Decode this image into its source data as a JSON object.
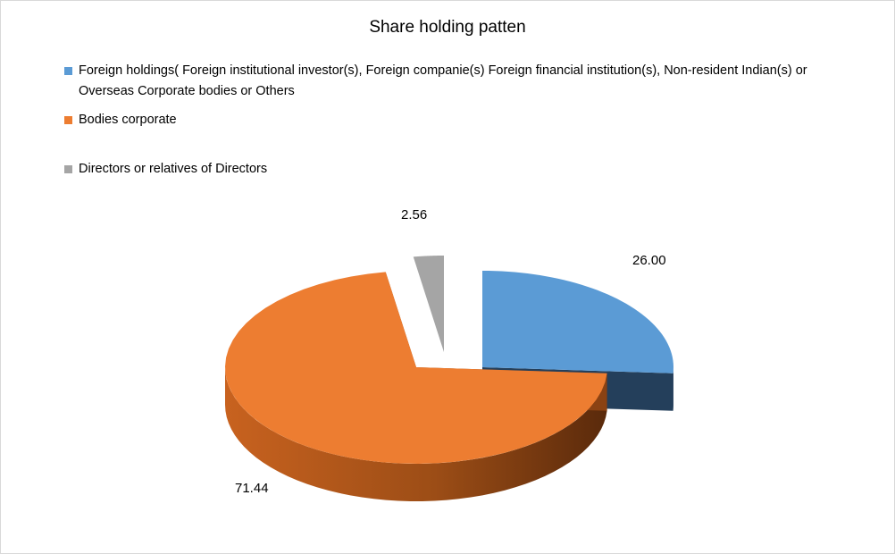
{
  "chart_data": {
    "type": "pie",
    "title": "Share holding patten",
    "legend_position": "top",
    "three_d": true,
    "exploded": true,
    "slices": [
      {
        "label": "Foreign holdings( Foreign institutional investor(s), Foreign companie(s) Foreign financial institution(s),  Non-resident Indian(s) or Overseas Corporate bodies or Others",
        "value": 26.0,
        "value_label": "26.00",
        "color": "#5b9bd5",
        "side_color": "#243f5b"
      },
      {
        "label": "Bodies corporate",
        "value": 71.44,
        "value_label": "71.44",
        "color": "#ed7d31",
        "side_color": "#8a4213"
      },
      {
        "label": "Directors or relatives of Directors",
        "value": 2.56,
        "value_label": "2.56",
        "color": "#a5a5a5",
        "side_color": "#3f3f3f"
      }
    ]
  }
}
